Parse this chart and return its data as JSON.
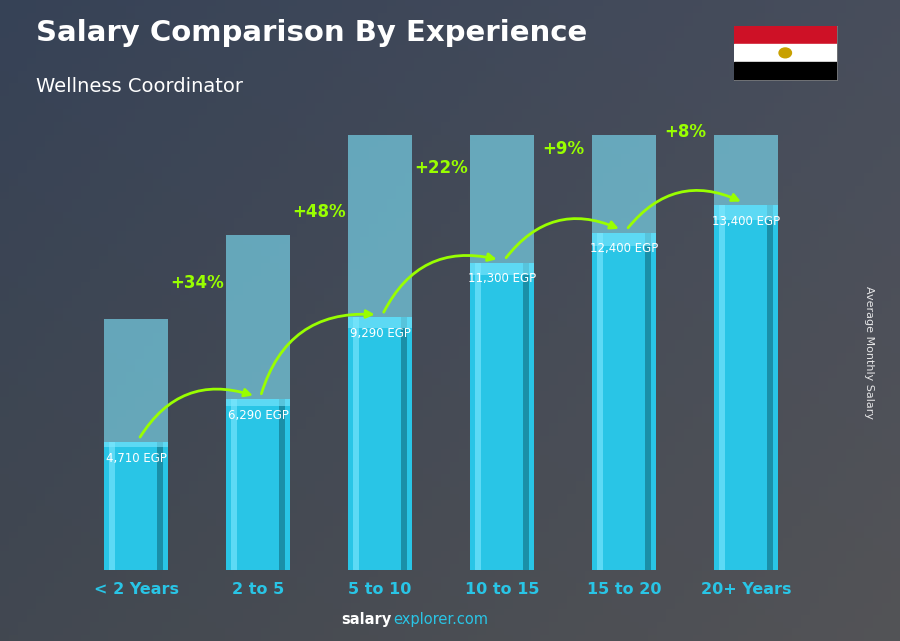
{
  "title_line1": "Salary Comparison By Experience",
  "subtitle": "Wellness Coordinator",
  "categories": [
    "< 2 Years",
    "2 to 5",
    "5 to 10",
    "10 to 15",
    "15 to 20",
    "20+ Years"
  ],
  "values": [
    4710,
    6290,
    9290,
    11300,
    12400,
    13400
  ],
  "labels": [
    "4,710 EGP",
    "6,290 EGP",
    "9,290 EGP",
    "11,300 EGP",
    "12,400 EGP",
    "13,400 EGP"
  ],
  "pct_labels": [
    "+34%",
    "+48%",
    "+22%",
    "+9%",
    "+8%"
  ],
  "bar_color_main": "#29c5e6",
  "bar_color_light": "#5ddaf5",
  "bar_color_dark": "#1a8fa8",
  "ylabel": "Average Monthly Salary",
  "footer_bold": "salary",
  "footer_reg": "explorer.com",
  "bg_color": "#7a8a8a",
  "title_color": "#ffffff",
  "subtitle_color": "#ffffff",
  "label_color": "#ffffff",
  "pct_color": "#99ff00",
  "arrow_color": "#99ff00",
  "xtick_color": "#29c5e6",
  "ylim": [
    0,
    16000
  ],
  "figsize": [
    9.0,
    6.41
  ],
  "dpi": 100
}
